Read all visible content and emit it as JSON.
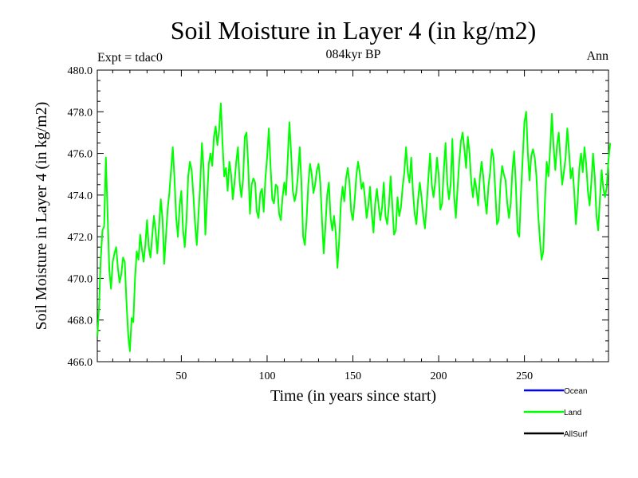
{
  "chart_data": {
    "type": "line",
    "title": "Soil Moisture in Layer 4 (in kg/m2)",
    "subtitle": "084kyr BP",
    "left_label": "Expt = tdac0",
    "right_label": "Ann",
    "xlabel": "Time (in years since start)",
    "ylabel": "Soil Moisture in Layer 4 (in kg/m2)",
    "xlim": [
      1,
      299
    ],
    "ylim": [
      466.0,
      480.0
    ],
    "x_ticks": [
      50,
      100,
      150,
      200,
      250
    ],
    "y_ticks": [
      466.0,
      468.0,
      470.0,
      472.0,
      474.0,
      476.0,
      478.0,
      480.0
    ],
    "y_tick_labels": [
      "466.0",
      "468.0",
      "470.0",
      "472.0",
      "474.0",
      "476.0",
      "478.0",
      "480.0"
    ],
    "x_tick_labels": [
      "50",
      "100",
      "150",
      "200",
      "250"
    ],
    "legend": [
      {
        "label": "Ocean",
        "color": "#0000ff"
      },
      {
        "label": "Land",
        "color": "#00ff00"
      },
      {
        "label": "AllSurf",
        "color": "#000000"
      }
    ],
    "legend_position": "bottom-right",
    "series": [
      {
        "name": "Land",
        "color": "#00ff00",
        "x_start": 1,
        "x_step": 1,
        "values": [
          467.2,
          468.6,
          470.9,
          472.3,
          472.5,
          475.8,
          473.1,
          470.4,
          469.5,
          470.8,
          471.2,
          471.5,
          470.5,
          469.8,
          470.2,
          471.0,
          470.8,
          468.9,
          467.3,
          466.5,
          468.1,
          467.9,
          470.0,
          471.3,
          470.9,
          472.1,
          471.4,
          470.8,
          471.6,
          472.8,
          471.5,
          471.0,
          472.0,
          473.0,
          472.3,
          471.2,
          472.5,
          473.8,
          472.9,
          470.7,
          472.0,
          473.3,
          474.1,
          475.2,
          476.3,
          474.8,
          472.9,
          472.0,
          473.5,
          474.2,
          472.3,
          471.5,
          472.8,
          474.9,
          475.6,
          475.2,
          474.0,
          472.6,
          471.6,
          473.1,
          474.5,
          476.5,
          475.2,
          472.1,
          473.8,
          475.5,
          476.0,
          475.4,
          476.8,
          477.3,
          476.4,
          477.1,
          478.4,
          476.5,
          474.9,
          475.3,
          474.2,
          475.6,
          475.0,
          473.8,
          474.6,
          475.6,
          476.3,
          474.6,
          473.9,
          474.8,
          476.8,
          477.0,
          475.4,
          473.1,
          474.5,
          474.8,
          474.6,
          473.2,
          472.9,
          474.1,
          474.3,
          473.2,
          474.8,
          475.8,
          477.2,
          475.4,
          473.8,
          473.6,
          474.5,
          474.4,
          473.1,
          472.8,
          473.9,
          474.6,
          474.0,
          475.7,
          477.5,
          476.0,
          474.2,
          473.7,
          474.1,
          475.0,
          476.3,
          474.6,
          472.0,
          471.6,
          472.8,
          474.5,
          475.5,
          475.0,
          474.1,
          474.5,
          475.2,
          475.5,
          474.6,
          472.8,
          471.2,
          472.5,
          474.0,
          474.6,
          472.9,
          472.3,
          473.0,
          472.2,
          470.5,
          471.8,
          473.6,
          474.4,
          473.7,
          474.8,
          475.3,
          474.6,
          473.2,
          472.8,
          473.7,
          474.9,
          475.6,
          475.1,
          474.3,
          474.6,
          473.9,
          472.9,
          473.5,
          474.4,
          473.1,
          472.2,
          473.6,
          474.3,
          473.5,
          472.8,
          473.4,
          474.6,
          473.0,
          472.6,
          473.5,
          474.9,
          473.5,
          472.1,
          472.3,
          473.9,
          473.0,
          473.4,
          474.4,
          475.1,
          476.3,
          475.1,
          474.6,
          475.8,
          474.2,
          473.1,
          472.6,
          473.8,
          474.6,
          473.9,
          473.0,
          472.4,
          473.5,
          474.8,
          476.0,
          474.5,
          473.9,
          474.6,
          475.8,
          475.0,
          473.3,
          473.6,
          475.2,
          476.5,
          474.6,
          473.8,
          474.5,
          476.7,
          474.0,
          472.9,
          474.3,
          475.6,
          476.6,
          477.0,
          476.2,
          475.3,
          476.8,
          476.0,
          474.6,
          473.9,
          474.8,
          474.3,
          473.5,
          474.8,
          475.6,
          474.9,
          473.8,
          473.1,
          474.4,
          475.1,
          476.2,
          475.8,
          474.2,
          472.6,
          472.8,
          474.5,
          475.4,
          475.0,
          474.7,
          473.6,
          472.9,
          473.6,
          475.2,
          476.1,
          474.5,
          472.2,
          472.0,
          474.1,
          475.8,
          477.5,
          478.0,
          476.0,
          474.7,
          475.9,
          476.2,
          475.8,
          474.9,
          473.1,
          471.9,
          470.9,
          471.3,
          473.8,
          475.6,
          474.9,
          476.2,
          477.9,
          476.3,
          475.2,
          476.4,
          477.0,
          475.7,
          474.5,
          475.1,
          475.8,
          477.2,
          476.1,
          474.8,
          475.3,
          474.2,
          472.6,
          473.7,
          475.3,
          476.0,
          475.1,
          476.3,
          475.5,
          474.2,
          473.5,
          474.6,
          476.0,
          474.9,
          473.0,
          472.3,
          473.8,
          475.2,
          474.3,
          473.9,
          474.4,
          475.7,
          476.5
        ]
      }
    ]
  }
}
